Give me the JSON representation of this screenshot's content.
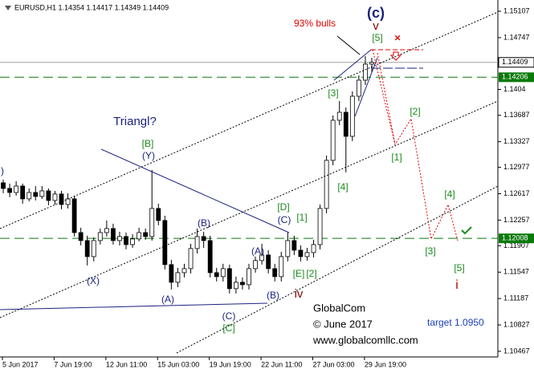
{
  "chart_data": {
    "type": "candlestick",
    "header": "EURUSD,H1  1.14354 1.14417 1.14349 1.14409",
    "categories": [
      "5 Jun 2017",
      null,
      null,
      null,
      null,
      null,
      null,
      null,
      "7 Jun 19:00",
      null,
      null,
      null,
      null,
      null,
      null,
      null,
      "12 Jun 11:00",
      null,
      null,
      null,
      null,
      null,
      null,
      null,
      "15 Jun 03:00",
      null,
      null,
      null,
      null,
      null,
      null,
      null,
      "19 Jun 19:00",
      null,
      null,
      null,
      null,
      null,
      null,
      null,
      "22 Jun 11:00",
      null,
      null,
      null,
      null,
      null,
      null,
      null,
      "27 Jun 03:00",
      null,
      null,
      null,
      null,
      null,
      null,
      null,
      "29 Jun 19:00",
      null,
      null,
      null,
      null,
      null,
      null,
      null,
      null,
      null,
      null,
      null,
      null,
      null,
      null,
      null,
      null,
      null,
      null,
      null,
      null
    ],
    "open": [
      1.12766,
      1.12689,
      1.12634,
      1.12722,
      1.12547,
      1.12634,
      1.1258,
      1.12656,
      1.12525,
      1.12613,
      1.1247,
      1.12547,
      1.12087,
      1.11978,
      1.11759,
      1.11978,
      1.12087,
      1.12142,
      1.11978,
      1.12033,
      1.11923,
      1.12,
      1.12087,
      1.12033,
      1.12416,
      1.12252,
      1.1165,
      1.11409,
      1.1154,
      1.11595,
      1.11869,
      1.12033,
      1.11978,
      1.1154,
      1.11486,
      1.11595,
      1.11322,
      1.11409,
      1.11376,
      1.11595,
      1.11705,
      1.11781,
      1.11595,
      1.11486,
      1.11759,
      1.11978,
      1.11847,
      1.11759,
      1.11814,
      1.11923,
      1.12416,
      1.13072,
      1.13619,
      1.13728,
      1.134,
      1.13947,
      1.14166,
      1.14385,
      null,
      null,
      null,
      null,
      null,
      null,
      null,
      null,
      null,
      null,
      null,
      null,
      null,
      null,
      null,
      null,
      null,
      null,
      null
    ],
    "high": [
      1.12809,
      1.12755,
      1.12788,
      1.12755,
      1.12689,
      1.12722,
      1.12722,
      1.12689,
      1.12656,
      1.12656,
      1.12624,
      1.12591,
      1.12153,
      1.12044,
      1.12022,
      1.12142,
      1.12252,
      1.12208,
      1.12098,
      1.12087,
      1.12065,
      1.12153,
      1.12142,
      1.12941,
      1.12481,
      1.12317,
      1.11716,
      1.11606,
      1.11661,
      1.11934,
      1.12142,
      1.12098,
      1.12044,
      1.11606,
      1.11661,
      1.1165,
      1.11486,
      1.11475,
      1.11661,
      1.11759,
      1.11934,
      1.11847,
      1.11661,
      1.11825,
      1.12087,
      1.12044,
      1.11912,
      1.11879,
      1.11989,
      1.1247,
      1.13138,
      1.13685,
      1.13881,
      1.13794,
      1.14013,
      1.14232,
      1.14494,
      1.14472,
      null,
      null,
      null,
      null,
      null,
      null,
      null,
      null,
      null,
      null,
      null,
      null,
      null,
      null,
      null,
      null,
      null,
      null,
      null
    ],
    "low": [
      1.12624,
      1.12569,
      1.12591,
      1.12481,
      1.12514,
      1.12525,
      1.12547,
      1.12459,
      1.1247,
      1.12405,
      1.12416,
      1.12033,
      1.11912,
      1.11639,
      1.11694,
      1.11923,
      1.12033,
      1.11923,
      1.11912,
      1.11858,
      1.11879,
      1.11967,
      1.11989,
      1.11978,
      1.12186,
      1.11584,
      1.11311,
      1.11343,
      1.11475,
      1.1153,
      1.11803,
      1.11879,
      1.11475,
      1.1142,
      1.1142,
      1.11256,
      1.11256,
      1.11311,
      1.11311,
      1.1154,
      1.1165,
      1.1153,
      1.1142,
      1.1142,
      1.11694,
      1.11781,
      1.11694,
      1.11705,
      1.11748,
      1.11858,
      1.1235,
      1.13006,
      1.13553,
      1.12908,
      1.13335,
      1.13881,
      1.141,
      1.14275,
      null,
      null,
      null,
      null,
      null,
      null,
      null,
      null,
      null,
      null,
      null,
      null,
      null,
      null,
      null,
      null,
      null,
      null,
      null
    ],
    "close": [
      1.12689,
      1.12634,
      1.12722,
      1.12547,
      1.12634,
      1.1258,
      1.12656,
      1.12525,
      1.12613,
      1.1247,
      1.12547,
      1.12087,
      1.11978,
      1.11759,
      1.11978,
      1.12087,
      1.12142,
      1.11978,
      1.12033,
      1.11923,
      1.12,
      1.12087,
      1.12033,
      1.12416,
      1.12252,
      1.1165,
      1.11409,
      1.1154,
      1.11595,
      1.11869,
      1.12033,
      1.11978,
      1.1154,
      1.11486,
      1.11595,
      1.11322,
      1.11409,
      1.11376,
      1.11595,
      1.11705,
      1.11781,
      1.11595,
      1.11486,
      1.11759,
      1.11978,
      1.11847,
      1.11759,
      1.11814,
      1.11923,
      1.12416,
      1.13072,
      1.13619,
      1.13728,
      1.134,
      1.13947,
      1.14166,
      1.14385,
      1.14409,
      null,
      null,
      null,
      null,
      null,
      null,
      null,
      null,
      null,
      null,
      null,
      null,
      null,
      null,
      null,
      null,
      null,
      null,
      null
    ],
    "up_color": "#ffffff",
    "down_color": "#000000",
    "ylim": [
      1.1039,
      1.1526
    ],
    "yticks": [
      1.15107,
      1.14747,
      1.1404,
      1.13687,
      1.13327,
      1.12977,
      1.12617,
      1.12257,
      1.11907,
      1.11547,
      1.11187,
      1.10827,
      1.10467
    ],
    "last_price": 1.14409,
    "levels": [
      {
        "value": 1.14206,
        "color": "#0b7a0b"
      },
      {
        "value": 1.12008,
        "color": "#0b7a0b"
      }
    ],
    "annotations": [
      {
        "text": "(c)",
        "color": "#1a237e"
      },
      {
        "text": "v",
        "color": "#8b0000"
      },
      {
        "text": "93% bulls",
        "color": "#e00000"
      },
      {
        "text": "[5]",
        "color": "#1b8a1b"
      },
      {
        "text": "[3]",
        "color": "#1b8a1b"
      },
      {
        "text": "[2]",
        "color": "#1b8a1b"
      },
      {
        "text": "[1]",
        "color": "#1b8a1b"
      },
      {
        "text": "[4]",
        "color": "#1b8a1b"
      },
      {
        "text": "[4]",
        "color": "#1b8a1b"
      },
      {
        "text": "[3]",
        "color": "#1b8a1b"
      },
      {
        "text": "[5]",
        "color": "#1b8a1b"
      },
      {
        "text": "i",
        "color": "#c00000"
      },
      {
        "text": "Triangl?",
        "color": "#1a237e"
      },
      {
        "text": "[B]",
        "color": "#1b8a1b"
      },
      {
        "text": "(Y)",
        "color": "#1a237e"
      },
      {
        "text": "(X)",
        "color": "#1a237e"
      },
      {
        "text": "(B)",
        "color": "#1a237e"
      },
      {
        "text": "(A)",
        "color": "#1a237e"
      },
      {
        "text": "(C)",
        "color": "#1a237e"
      },
      {
        "text": "[C]",
        "color": "#1b8a1b"
      },
      {
        "text": "(A)",
        "color": "#1a237e"
      },
      {
        "text": "(B)",
        "color": "#1a237e"
      },
      {
        "text": "[D]",
        "color": "#1b8a1b"
      },
      {
        "text": "(C)",
        "color": "#1a237e"
      },
      {
        "text": "[1]",
        "color": "#1b8a1b"
      },
      {
        "text": "[E]",
        "color": "#1b8a1b"
      },
      {
        "text": "[2]",
        "color": "#1b8a1b"
      },
      {
        "text": "iv",
        "color": "#8b0000"
      },
      {
        "text": "GlobalCom",
        "color": "#000000"
      },
      {
        "text": "© June 2017",
        "color": "#000000"
      },
      {
        "text": "www.globalcomllc.com",
        "color": "#000000"
      },
      {
        "text": "target 1.0950",
        "color": "#1a3fbf"
      },
      {
        "text": ")",
        "color": "#1a237e"
      }
    ]
  }
}
